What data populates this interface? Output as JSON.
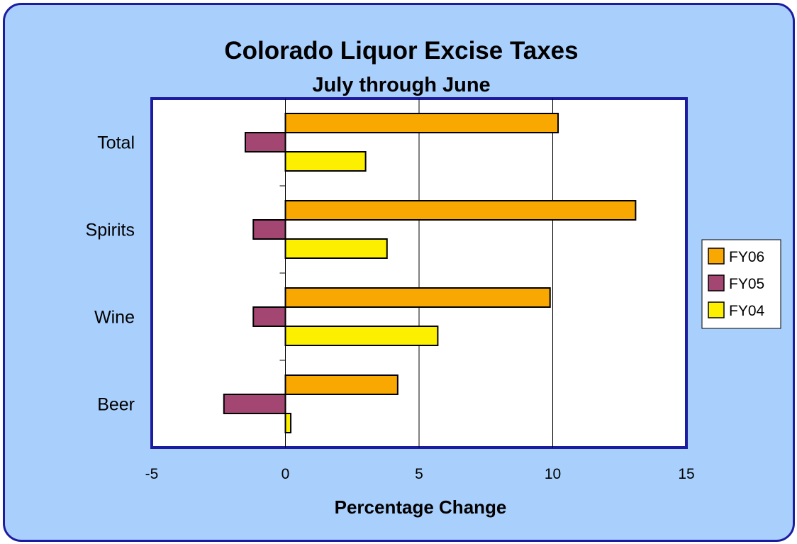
{
  "chart_data": {
    "type": "bar",
    "orientation": "horizontal",
    "title": "Colorado Liquor Excise Taxes",
    "subtitle": "July through June",
    "xlabel": "Percentage Change",
    "ylabel": "",
    "xlim": [
      -5,
      15
    ],
    "xticks": [
      -5,
      0,
      5,
      10,
      15
    ],
    "xtick_labels": [
      "-5",
      "0",
      "5",
      "10",
      "15"
    ],
    "grid": "vertical",
    "legend_position": "right",
    "categories": [
      "Total",
      "Spirits",
      "Wine",
      "Beer"
    ],
    "series": [
      {
        "name": "FY06",
        "color": "#f8a800",
        "values": [
          10.2,
          13.1,
          9.9,
          4.2
        ]
      },
      {
        "name": "FY05",
        "color": "#a44672",
        "values": [
          -1.5,
          -1.2,
          -1.2,
          -2.3
        ]
      },
      {
        "name": "FY04",
        "color": "#fcf000",
        "values": [
          3.0,
          3.8,
          5.7,
          0.2
        ]
      }
    ]
  },
  "colors": {
    "background": "#a9cffc",
    "border": "#1c1ca0",
    "plot_area": "#ffffff"
  }
}
